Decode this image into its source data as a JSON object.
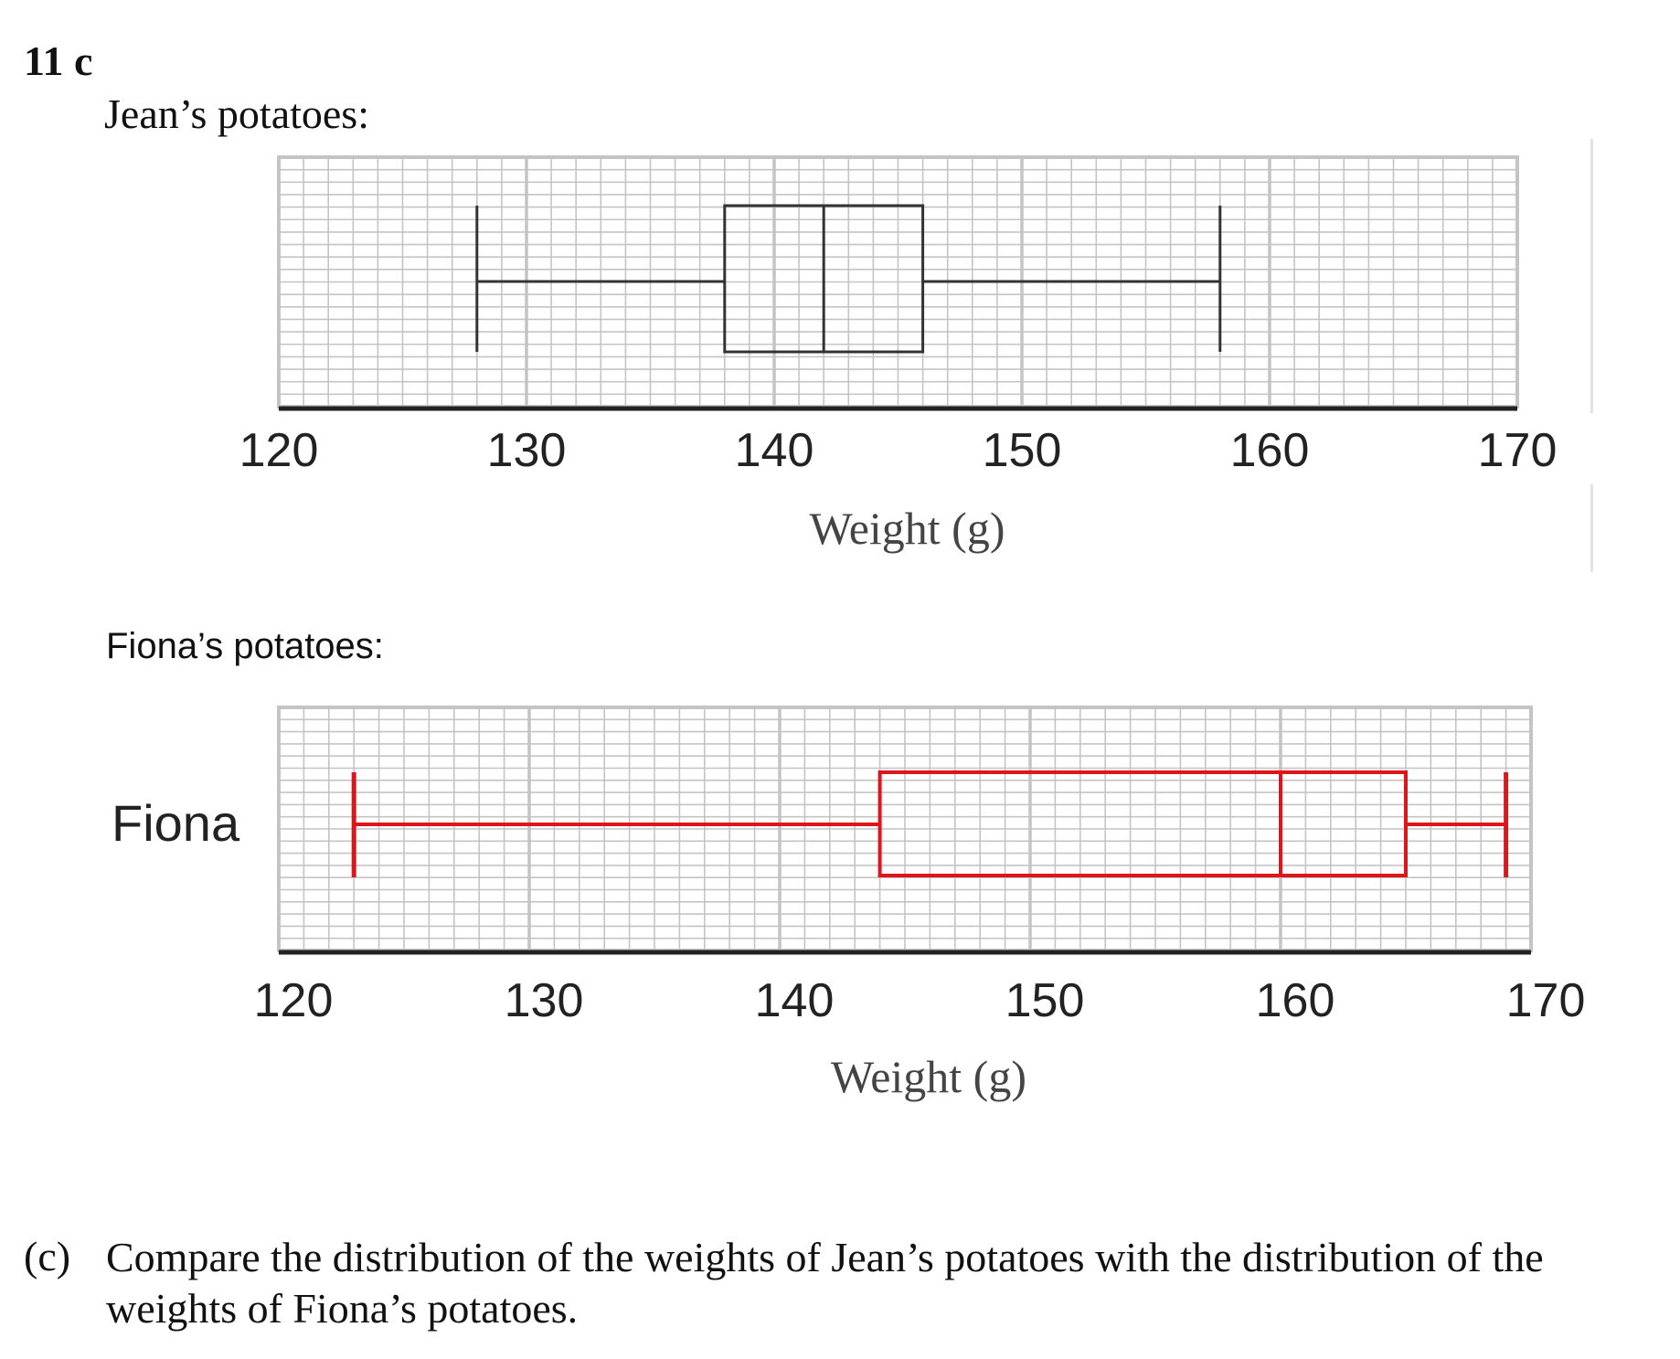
{
  "question_number": "11 c",
  "question_letter": "(c)",
  "question_text": "Compare the distribution of the weights of Jean’s potatoes with the distribution of the weights of Fiona’s potatoes.",
  "colors": {
    "jean_box": "#333333",
    "fiona_box": "#e0141b",
    "grid": "#c4c4c4",
    "axis": "#222222"
  },
  "chart_data": [
    {
      "type": "box",
      "heading": "Jean’s potatoes:",
      "row_label": "",
      "xlabel": "Weight (g)",
      "xlim": [
        120,
        170
      ],
      "ticks": [
        "120",
        "130",
        "140",
        "150",
        "160",
        "170"
      ],
      "grid": true,
      "box": {
        "min": 128,
        "q1": 138,
        "median": 142,
        "q3": 146,
        "max": 158
      }
    },
    {
      "type": "box",
      "heading": "Fiona’s potatoes:",
      "row_label": "Fiona",
      "xlabel": "Weight (g)",
      "xlim": [
        120,
        170
      ],
      "ticks": [
        "120",
        "130",
        "140",
        "150",
        "160",
        "170"
      ],
      "grid": true,
      "box": {
        "min": 123,
        "q1": 144,
        "median": 160,
        "q3": 165,
        "max": 169
      }
    }
  ]
}
